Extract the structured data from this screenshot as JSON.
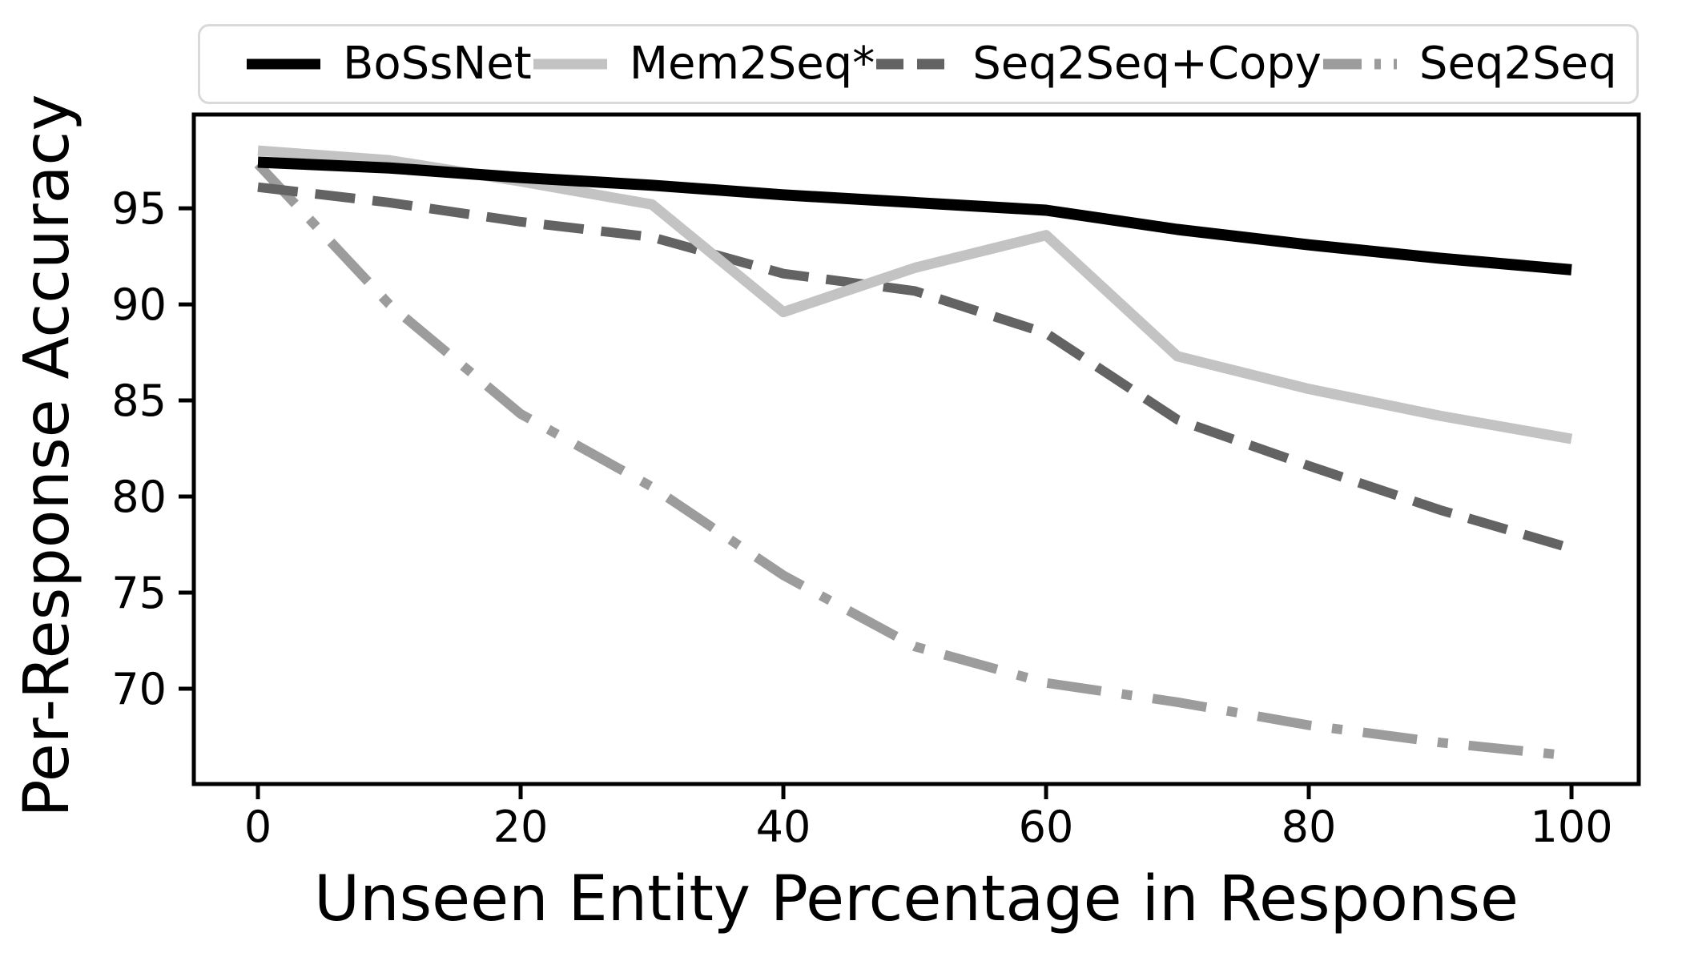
{
  "chart_data": {
    "type": "line",
    "title": "",
    "xlabel": "Unseen Entity Percentage in Response",
    "ylabel": "Per-Response Accuracy",
    "x": [
      0,
      10,
      20,
      30,
      40,
      50,
      60,
      70,
      80,
      90,
      100
    ],
    "xlim": [
      -4.88,
      105.12
    ],
    "ylim": [
      65.04,
      99.88
    ],
    "xticks": [
      0,
      20,
      40,
      60,
      80,
      100
    ],
    "xtick_labels": [
      "0",
      "20",
      "40",
      "60",
      "80",
      "100"
    ],
    "yticks": [
      70,
      75,
      80,
      85,
      90,
      95
    ],
    "ytick_labels": [
      "70",
      "75",
      "80",
      "85",
      "90",
      "95"
    ],
    "grid": false,
    "legend_position": "top",
    "axis_color": "#000000",
    "legend_border_color": "#d9d9d9",
    "series": [
      {
        "name": "BoSsNet",
        "color": "#000000",
        "style": "solid",
        "values": [
          97.4,
          97.1,
          96.6,
          96.2,
          95.7,
          95.3,
          94.9,
          93.9,
          93.1,
          92.4,
          91.8
        ]
      },
      {
        "name": "Mem2Seq*",
        "color": "#c3c3c3",
        "style": "solid",
        "values": [
          98.0,
          97.5,
          96.4,
          95.2,
          89.6,
          91.9,
          93.6,
          87.3,
          85.6,
          84.2,
          83.0
        ]
      },
      {
        "name": "Seq2Seq+Copy",
        "color": "#636363",
        "style": "dashed",
        "values": [
          96.1,
          95.3,
          94.3,
          93.5,
          91.6,
          90.7,
          88.5,
          84.0,
          81.6,
          79.3,
          77.3
        ]
      },
      {
        "name": "Seq2Seq",
        "color": "#9c9c9c",
        "style": "dashdot",
        "values": [
          97.3,
          90.0,
          84.3,
          80.5,
          75.9,
          72.2,
          70.3,
          69.3,
          68.1,
          67.2,
          66.5
        ]
      }
    ]
  }
}
